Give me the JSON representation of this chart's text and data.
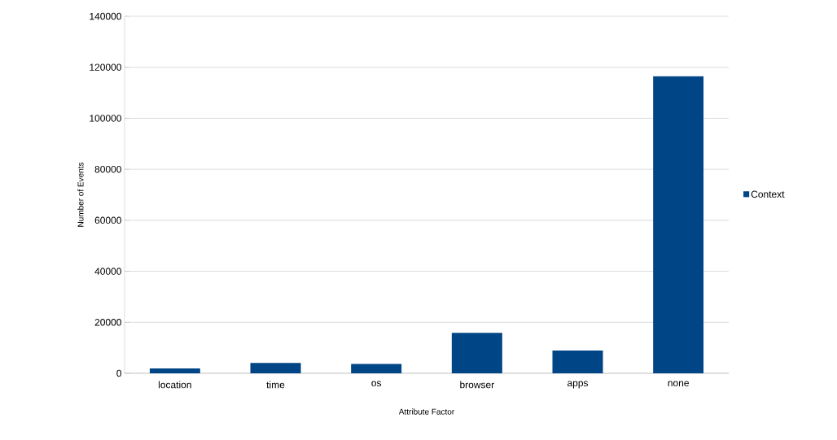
{
  "chart_data": {
    "type": "bar",
    "xlabel": "Attribute Factor",
    "ylabel": "Number of Events",
    "categories": [
      "location",
      "time",
      "os",
      "browser",
      "apps",
      "none"
    ],
    "series": [
      {
        "name": "Context",
        "color": "#004586",
        "values": [
          1900,
          4100,
          3700,
          15900,
          8900,
          116500
        ]
      }
    ],
    "ylim": [
      0,
      140000
    ],
    "yticks": [
      0,
      20000,
      40000,
      60000,
      80000,
      100000,
      120000,
      140000
    ],
    "grid": "y",
    "legend": "right"
  }
}
